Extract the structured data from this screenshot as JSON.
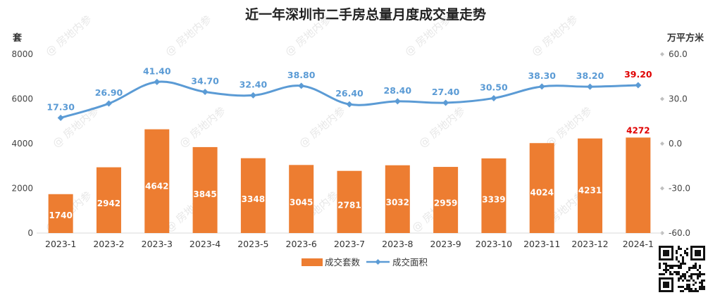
{
  "chart_data": {
    "type": "bar+line",
    "title": "近一年深圳市二手房总量月度成交量走势",
    "left_axis_unit": "套",
    "right_axis_unit": "万平方米",
    "categories": [
      "2023-1",
      "2023-2",
      "2023-3",
      "2023-4",
      "2023-5",
      "2023-6",
      "2023-7",
      "2023-8",
      "2023-9",
      "2023-10",
      "2023-11",
      "2023-12",
      "2024-1"
    ],
    "left_ticks": [
      "0",
      "2000",
      "4000",
      "6000",
      "8000"
    ],
    "right_ticks": [
      "-60.0",
      "-30.0",
      "0.0",
      "30.0",
      "60.0"
    ],
    "ylim_left": [
      0,
      8000
    ],
    "ylim_right": [
      -60,
      60
    ],
    "series": [
      {
        "name": "成交套数",
        "axis": "left",
        "kind": "bar",
        "values": [
          1740,
          2942,
          4642,
          3845,
          3348,
          3045,
          2781,
          3032,
          2959,
          3339,
          4024,
          4231,
          4272
        ],
        "labels": [
          "1740",
          "2942",
          "4642",
          "3845",
          "3348",
          "3045",
          "2781",
          "3032",
          "2959",
          "3339",
          "4024",
          "4231",
          "4272"
        ]
      },
      {
        "name": "成交面积",
        "axis": "right",
        "kind": "line",
        "values": [
          17.3,
          26.9,
          41.4,
          34.7,
          32.4,
          38.8,
          26.4,
          28.4,
          27.4,
          30.5,
          38.3,
          38.2,
          39.2
        ],
        "labels": [
          "17.30",
          "26.90",
          "41.40",
          "34.70",
          "32.40",
          "38.80",
          "26.40",
          "28.40",
          "27.40",
          "30.50",
          "38.30",
          "38.20",
          "39.20"
        ]
      }
    ],
    "legend_position": "bottom-center",
    "grid": false,
    "colors": {
      "bar": "#ED7D31",
      "line": "#5B9BD5",
      "highlight": "#E00000",
      "axis": "#D9D9D9",
      "text": "#404040"
    },
    "watermark": "@ 房地内参"
  }
}
